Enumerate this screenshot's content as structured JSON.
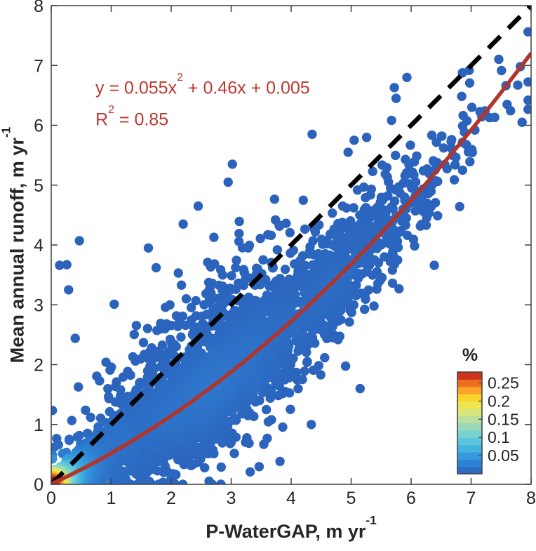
{
  "chart_data": {
    "type": "scatter",
    "subtype": "density-colored-scatter",
    "title": "",
    "xlabel": {
      "text": "P-WaterGAP, m yr",
      "sup": "-1"
    },
    "ylabel": {
      "text": "Mean annual runoff, m yr",
      "sup": "-1"
    },
    "xlim": [
      0,
      8
    ],
    "ylim": [
      0,
      8
    ],
    "xticks": [
      0,
      1,
      2,
      3,
      4,
      5,
      6,
      7,
      8
    ],
    "yticks": [
      0,
      1,
      2,
      3,
      4,
      5,
      6,
      7,
      8
    ],
    "grid": false,
    "box": true,
    "annotation": {
      "eq_pre": "y = 0.055x",
      "eq_sup": "2",
      "eq_post": " + 0.46x + 0.005",
      "r2_pre": "R",
      "r2_sup": "2",
      "r2_post": " = 0.85",
      "color": "#BE372F"
    },
    "fit": {
      "type": "quadratic",
      "a": 0.055,
      "b": 0.46,
      "c": 0.005,
      "r2": 0.85,
      "color": "#B2352C",
      "width": 5.5
    },
    "identity_line": {
      "from": [
        0,
        0
      ],
      "to": [
        8,
        8
      ],
      "color": "#000000",
      "width": 6.5,
      "dash": [
        24,
        16
      ]
    },
    "colorbar": {
      "title": "%",
      "position": "right-middle",
      "ticks": [
        0.05,
        0.1,
        0.15,
        0.2,
        0.25
      ],
      "range": [
        0,
        0.28
      ],
      "bands": 14
    },
    "colormap": [
      [
        0.0,
        "#2B62BC"
      ],
      [
        0.1,
        "#2E7FD2"
      ],
      [
        0.2,
        "#37A3DF"
      ],
      [
        0.3,
        "#52C2E0"
      ],
      [
        0.4,
        "#7BD2CE"
      ],
      [
        0.5,
        "#A9DCAC"
      ],
      [
        0.58,
        "#CDE48C"
      ],
      [
        0.66,
        "#ECE857"
      ],
      [
        0.74,
        "#FBD92B"
      ],
      [
        0.82,
        "#F8A427"
      ],
      [
        0.89,
        "#F0701F"
      ],
      [
        0.95,
        "#DC3D1C"
      ],
      [
        1.0,
        "#A81C18"
      ]
    ],
    "marker_radius": 6.7,
    "density_peaks": [
      {
        "x": 2.8,
        "y": 1.75,
        "value_pct": 0.28
      },
      {
        "x": 0.08,
        "y": 0.06,
        "value_pct": 0.2
      }
    ],
    "generator": {
      "seed": 42,
      "n": 4300,
      "components": [
        {
          "kind": "origin",
          "w": 0.3
        },
        {
          "kind": "main",
          "w": 0.4
        },
        {
          "kind": "halo",
          "w": 0.14
        },
        {
          "kind": "band",
          "w": 0.1
        },
        {
          "kind": "above",
          "w": 0.06
        }
      ]
    },
    "outliers": [
      [
        0.47,
        4.07
      ],
      [
        0.26,
        3.67
      ],
      [
        0.14,
        3.66
      ],
      [
        0.29,
        3.25
      ],
      [
        1.05,
        3.01
      ],
      [
        0.4,
        2.44
      ],
      [
        0.05,
        0.62
      ],
      [
        1.62,
        3.95
      ],
      [
        1.75,
        3.62
      ],
      [
        2.45,
        4.65
      ],
      [
        2.95,
        5.05
      ],
      [
        3.02,
        5.35
      ],
      [
        2.2,
        4.35
      ],
      [
        4.35,
        5.85
      ],
      [
        4.95,
        5.55
      ],
      [
        5.05,
        5.75
      ],
      [
        5.93,
        6.8
      ],
      [
        5.72,
        6.63
      ],
      [
        5.75,
        6.45
      ],
      [
        7.95,
        6.42
      ],
      [
        7.6,
        6.35
      ],
      [
        7.85,
        6.05
      ],
      [
        5.15,
        1.6
      ]
    ],
    "frame_color": "#3F3F3F",
    "tick_label_color": "#262626",
    "tick_font_size": 25,
    "colorbar_font_size": 23
  }
}
